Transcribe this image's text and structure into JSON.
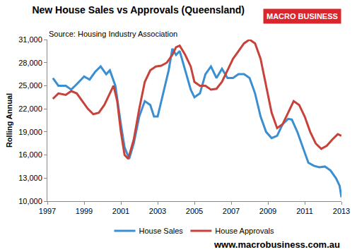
{
  "chart_data": {
    "type": "line",
    "title": "New House Sales vs Approvals (Queensland)",
    "subtitle": "Source: Housing Industry Association",
    "y_label": "Rolling Annual",
    "annotations": [
      "MACRO BUSINESS",
      "www.macrobusiness.com.au"
    ],
    "xlim": [
      1997,
      2013
    ],
    "xticks": [
      1997,
      1999,
      2001,
      2003,
      2005,
      2007,
      2009,
      2011,
      2013
    ],
    "ylim": [
      10000,
      31000
    ],
    "yticks": [
      {
        "value": 10000,
        "label": "10,000"
      },
      {
        "value": 13000,
        "label": "13,000"
      },
      {
        "value": 16000,
        "label": "16,000"
      },
      {
        "value": 19000,
        "label": "19,000"
      },
      {
        "value": 22000,
        "label": "22,000"
      },
      {
        "value": 25000,
        "label": "25,000"
      },
      {
        "value": 28000,
        "label": "28,000"
      },
      {
        "value": 31000,
        "label": "31,000"
      }
    ],
    "grid": false,
    "legend": "bottom",
    "series": [
      {
        "name": "House Sales",
        "color": "#3a8fd2",
        "x": [
          1997.3,
          1997.6,
          1998.0,
          1998.3,
          1998.6,
          1999.0,
          1999.3,
          1999.6,
          1999.9,
          2000.2,
          2000.4,
          2000.7,
          2001.0,
          2001.2,
          2001.45,
          2001.7,
          2002.0,
          2002.3,
          2002.6,
          2002.8,
          2003.0,
          2003.3,
          2003.6,
          2003.8,
          2004.0,
          2004.2,
          2004.5,
          2004.8,
          2005.0,
          2005.3,
          2005.6,
          2005.9,
          2006.2,
          2006.5,
          2006.8,
          2007.1,
          2007.4,
          2007.7,
          2008.0,
          2008.3,
          2008.6,
          2008.9,
          2009.2,
          2009.5,
          2009.8,
          2010.1,
          2010.3,
          2010.6,
          2010.9,
          2011.2,
          2011.5,
          2011.8,
          2012.1,
          2012.4,
          2012.7,
          2012.9,
          2013.0
        ],
        "values": [
          26000,
          25000,
          25000,
          24500,
          25200,
          26200,
          25800,
          26800,
          27500,
          26500,
          27000,
          25000,
          20000,
          17000,
          15500,
          17500,
          21000,
          23000,
          22500,
          21000,
          21000,
          24000,
          27000,
          29800,
          29000,
          29500,
          27000,
          24500,
          23500,
          24000,
          26500,
          27500,
          26000,
          27200,
          26000,
          26000,
          26500,
          26500,
          26000,
          24000,
          21000,
          19000,
          18200,
          18500,
          20000,
          20700,
          20600,
          19000,
          17000,
          15000,
          14600,
          14400,
          14500,
          14000,
          13000,
          12000,
          10500
        ]
      },
      {
        "name": "House Approvals",
        "color": "#c8423c",
        "x": [
          1997.3,
          1997.6,
          1998.0,
          1998.3,
          1998.6,
          1998.9,
          1999.2,
          1999.5,
          1999.8,
          2000.1,
          2000.4,
          2000.6,
          2000.8,
          2001.0,
          2001.2,
          2001.4,
          2001.7,
          2002.0,
          2002.3,
          2002.6,
          2002.9,
          2003.2,
          2003.5,
          2003.8,
          2004.0,
          2004.2,
          2004.5,
          2004.8,
          2005.0,
          2005.3,
          2005.6,
          2005.9,
          2006.2,
          2006.5,
          2006.8,
          2007.1,
          2007.4,
          2007.7,
          2008.0,
          2008.3,
          2008.6,
          2008.9,
          2009.2,
          2009.5,
          2009.8,
          2010.1,
          2010.4,
          2010.7,
          2011.0,
          2011.3,
          2011.6,
          2011.9,
          2012.2,
          2012.5,
          2012.8,
          2013.0
        ],
        "values": [
          23300,
          24000,
          23800,
          24300,
          24000,
          23000,
          22000,
          21300,
          21500,
          22500,
          24000,
          25000,
          23000,
          19000,
          16000,
          15500,
          18000,
          22000,
          25500,
          27000,
          27500,
          27600,
          28000,
          29000,
          30000,
          30200,
          29000,
          27500,
          25500,
          25000,
          25000,
          24500,
          24600,
          25500,
          27000,
          28500,
          29500,
          30500,
          31000,
          30500,
          28500,
          25000,
          21500,
          19500,
          20000,
          21500,
          23000,
          22500,
          21000,
          19000,
          17500,
          16800,
          17200,
          18000,
          18700,
          18500
        ]
      }
    ]
  }
}
